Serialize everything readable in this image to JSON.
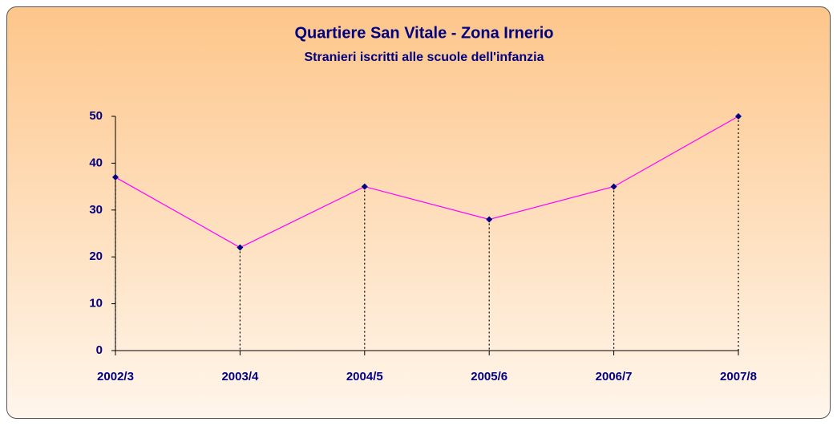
{
  "chart_data": {
    "type": "line",
    "title": "Quartiere San Vitale - Zona Irnerio",
    "subtitle": "Stranieri iscritti alle scuole dell'infanzia",
    "categories": [
      "2002/3",
      "2003/4",
      "2004/5",
      "2005/6",
      "2006/7",
      "2007/8"
    ],
    "values": [
      37,
      22,
      35,
      28,
      35,
      50
    ],
    "color": "#ff00ff",
    "marker_color": "#000080",
    "drop_lines": true,
    "ylim": [
      0,
      50
    ],
    "yticks": [
      0,
      10,
      20,
      30,
      40,
      50
    ]
  }
}
